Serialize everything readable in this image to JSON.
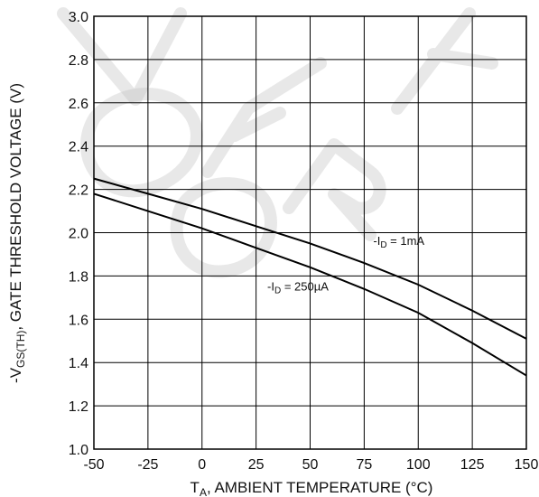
{
  "chart_data": {
    "type": "line",
    "x_range": [
      -50,
      150
    ],
    "y_range": [
      1.0,
      3.0
    ],
    "x_ticks": [
      -50,
      -25,
      0,
      25,
      50,
      75,
      100,
      125,
      150
    ],
    "y_ticks": [
      1.0,
      1.2,
      1.4,
      1.6,
      1.8,
      2.0,
      2.2,
      2.4,
      2.6,
      2.8,
      3.0
    ],
    "x_tick_labels": [
      "-50",
      "-25",
      "0",
      "25",
      "50",
      "75",
      "100",
      "125",
      "150"
    ],
    "y_tick_labels": [
      "1.0",
      "1.2",
      "1.4",
      "1.6",
      "1.8",
      "2.0",
      "2.2",
      "2.4",
      "2.6",
      "2.8",
      "3.0"
    ],
    "xlabel": {
      "main": "T",
      "sub": "A",
      "rest": ", AMBIENT TEMPERATURE (°C)"
    },
    "ylabel": {
      "pre": "-V",
      "sub": "GS(TH)",
      "rest": ", GATE THRESHOLD VOLTAGE (V)"
    },
    "grid": true,
    "series": [
      {
        "name": "-ID = 1mA",
        "label": {
          "pre": "-I",
          "sub": "D",
          "rest": " = 1mA"
        },
        "x": [
          -50,
          -25,
          0,
          25,
          50,
          75,
          100,
          125,
          150
        ],
        "y": [
          2.25,
          2.18,
          2.11,
          2.03,
          1.95,
          1.86,
          1.76,
          1.64,
          1.51
        ]
      },
      {
        "name": "-ID = 250µA",
        "label": {
          "pre": "-I",
          "sub": "D",
          "rest": " = 250µA"
        },
        "x": [
          -50,
          -25,
          0,
          25,
          50,
          75,
          100,
          125,
          150
        ],
        "y": [
          2.18,
          2.1,
          2.02,
          1.93,
          1.84,
          1.74,
          1.63,
          1.49,
          1.34
        ]
      }
    ]
  }
}
